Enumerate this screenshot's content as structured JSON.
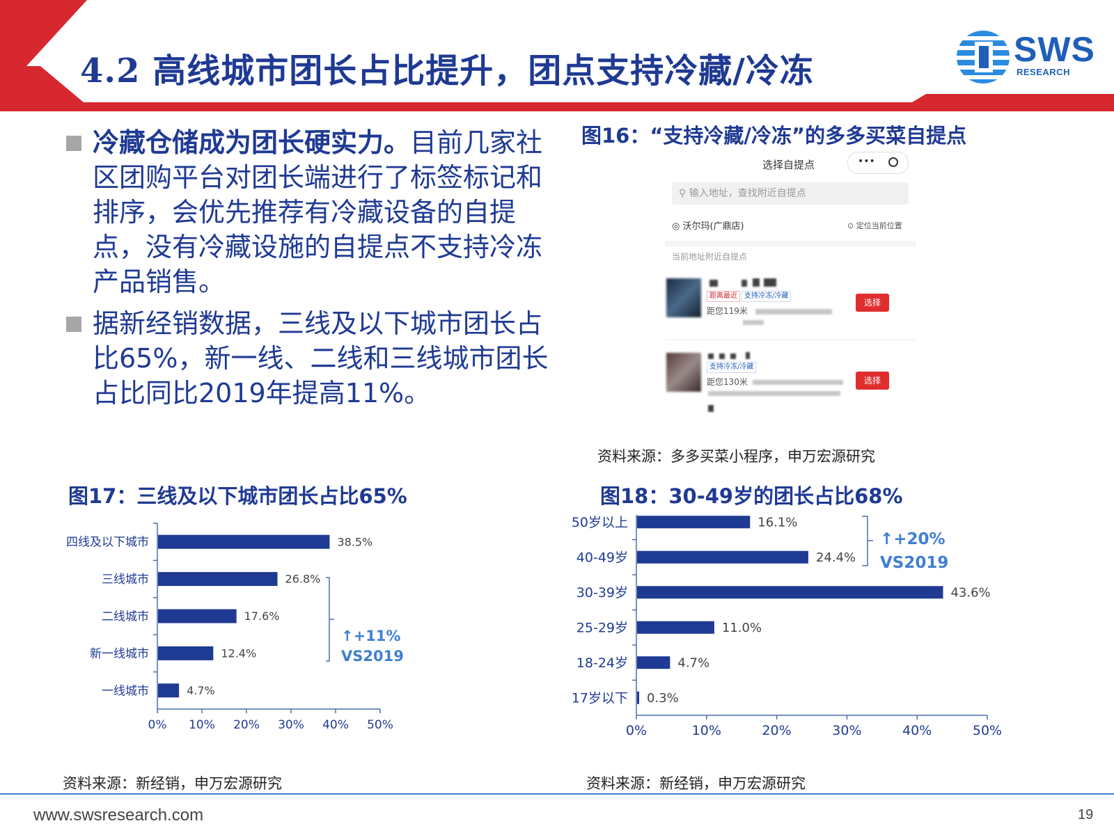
{
  "header": {
    "title": "4.2 高线城市团长占比提升，团点支持冷藏/冷冻",
    "logo_text": "SWS",
    "logo_sub": "RESEARCH",
    "accent_color": "#d7282f",
    "title_color": "#1f3a93"
  },
  "bullets": [
    {
      "bold": "冷藏仓储成为团长硬实力。",
      "text": "目前几家社区团购平台对团长端进行了标签标记和排序，会优先推荐有冷藏设备的自提点，没有冷藏设施的自提点不支持冷冻产品销售。"
    },
    {
      "bold": "",
      "text": "据新经销数据，三线及以下城市团长占比65%，新一线、二线和三线城市团长占比同比2019年提高11%。"
    }
  ],
  "fig16": {
    "title": "图16：“支持冷藏/冷冻”的多多买菜自提点",
    "source": "资料来源：多多买菜小程序，申万宏源研究",
    "phone": {
      "header": "选择自提点",
      "pill_dots": "•••",
      "search_placeholder": "输入地址，查找附近自提点",
      "location": "沃尔玛(广鼎店)",
      "locate_label": "定位当前位置",
      "nearby_label": "当前地址附近自提点",
      "items": [
        {
          "tags": [
            "距离最近",
            "支持冷冻/冷藏"
          ],
          "distance": "距您119米",
          "button": "选择"
        },
        {
          "tags": [
            "支持冷冻/冷藏"
          ],
          "distance": "距您130米",
          "button": "选择"
        }
      ]
    }
  },
  "fig17": {
    "title": "图17：三线及以下城市团长占比65%",
    "source": "资料来源：新经销，申万宏源研究",
    "annotation": [
      "↑+11%",
      "VS2019"
    ]
  },
  "fig18": {
    "title": "图18：30-49岁的团长占比68%",
    "source": "资料来源：新经销，申万宏源研究",
    "annotation": [
      "↑+20%",
      "VS2019"
    ]
  },
  "footer": {
    "url": "www.swsresearch.com",
    "page": "19"
  },
  "chart_data": [
    {
      "type": "bar",
      "orientation": "horizontal",
      "categories": [
        "四线及以下城市",
        "三线城市",
        "二线城市",
        "新一线城市",
        "一线城市"
      ],
      "values": [
        38.5,
        26.8,
        17.6,
        12.4,
        4.7
      ],
      "value_labels": [
        "38.5%",
        "26.8%",
        "17.6%",
        "12.4%",
        "4.7%"
      ],
      "xticks": [
        "0%",
        "10%",
        "20%",
        "30%",
        "40%",
        "50%"
      ],
      "xlim": [
        0,
        50
      ],
      "bar_color": "#1f3a93",
      "grid": false
    },
    {
      "type": "bar",
      "orientation": "horizontal",
      "categories": [
        "50岁以上",
        "40-49岁",
        "30-39岁",
        "25-29岁",
        "18-24岁",
        "17岁以下"
      ],
      "values": [
        16.1,
        24.4,
        43.6,
        11.0,
        4.7,
        0.3
      ],
      "value_labels": [
        "16.1%",
        "24.4%",
        "43.6%",
        "11.0%",
        "4.7%",
        "0.3%"
      ],
      "xticks": [
        "0%",
        "10%",
        "20%",
        "30%",
        "40%",
        "50%"
      ],
      "xlim": [
        0,
        50
      ],
      "bar_color": "#1f3a93",
      "grid": false
    }
  ]
}
